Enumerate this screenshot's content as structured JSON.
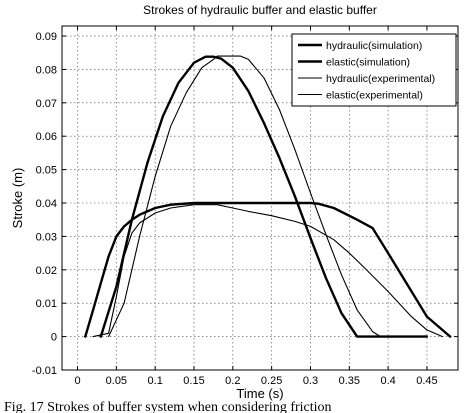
{
  "chart_data": {
    "type": "line",
    "title": "Strokes of hydraulic buffer and elastic buffer",
    "xlabel": "Time (s)",
    "ylabel": "Stroke (m)",
    "xlim": [
      -0.02,
      0.49
    ],
    "ylim": [
      -0.01,
      0.093
    ],
    "xticks": [
      0,
      0.05,
      0.1,
      0.15,
      0.2,
      0.25,
      0.3,
      0.35,
      0.4,
      0.45
    ],
    "xtick_labels": [
      "0",
      "0.05",
      "0.1",
      "0.15",
      "0.2",
      "0.25",
      "0.3",
      "0.35",
      "0.4",
      "0.45"
    ],
    "yticks": [
      -0.01,
      0,
      0.01,
      0.02,
      0.03,
      0.04,
      0.05,
      0.06,
      0.07,
      0.08,
      0.09
    ],
    "ytick_labels": [
      "-0.01",
      "0",
      "0.01",
      "0.02",
      "0.03",
      "0.04",
      "0.05",
      "0.06",
      "0.07",
      "0.08",
      "0.09"
    ],
    "grid": true,
    "legend_position": "top-right",
    "series": [
      {
        "name": "hydraulic(simulation)",
        "color": "#000000",
        "width": 2.4,
        "x": [
          0.01,
          0.02,
          0.03,
          0.04,
          0.05,
          0.06,
          0.07,
          0.08,
          0.09,
          0.1,
          0.12,
          0.15,
          0.18,
          0.2,
          0.25,
          0.3,
          0.31,
          0.33,
          0.36,
          0.38,
          0.4,
          0.45,
          0.48
        ],
        "y": [
          0,
          0.008,
          0.016,
          0.024,
          0.03,
          0.033,
          0.035,
          0.0365,
          0.0375,
          0.0385,
          0.0395,
          0.04,
          0.04,
          0.04,
          0.04,
          0.04,
          0.0398,
          0.0385,
          0.035,
          0.0325,
          0.025,
          0.006,
          0
        ]
      },
      {
        "name": "elastic(simulation)",
        "color": "#000000",
        "width": 2.4,
        "x": [
          0.03,
          0.05,
          0.07,
          0.09,
          0.11,
          0.13,
          0.15,
          0.165,
          0.175,
          0.185,
          0.2,
          0.22,
          0.24,
          0.26,
          0.28,
          0.3,
          0.32,
          0.34,
          0.36,
          0.38,
          0.4,
          0.45
        ],
        "y": [
          0,
          0.015,
          0.035,
          0.052,
          0.066,
          0.076,
          0.082,
          0.0838,
          0.0838,
          0.0832,
          0.0805,
          0.0735,
          0.064,
          0.0535,
          0.042,
          0.0295,
          0.0175,
          0.007,
          0,
          0,
          0,
          0
        ]
      },
      {
        "name": "hydraulic(experimental)",
        "color": "#000000",
        "width": 1.1,
        "x": [
          0.02,
          0.04,
          0.05,
          0.06,
          0.07,
          0.08,
          0.1,
          0.12,
          0.15,
          0.18,
          0.2,
          0.22,
          0.25,
          0.28,
          0.3,
          0.33,
          0.35,
          0.37,
          0.4,
          0.43,
          0.45,
          0.47
        ],
        "y": [
          0,
          0.001,
          0.012,
          0.024,
          0.031,
          0.034,
          0.037,
          0.0385,
          0.0395,
          0.0395,
          0.0385,
          0.0375,
          0.0362,
          0.0345,
          0.033,
          0.029,
          0.025,
          0.0205,
          0.0135,
          0.006,
          0.002,
          0
        ]
      },
      {
        "name": "elastic(experimental)",
        "color": "#000000",
        "width": 1.1,
        "x": [
          0.04,
          0.06,
          0.08,
          0.1,
          0.12,
          0.14,
          0.16,
          0.175,
          0.18,
          0.2,
          0.21,
          0.22,
          0.24,
          0.26,
          0.28,
          0.3,
          0.32,
          0.34,
          0.36,
          0.38,
          0.39,
          0.4,
          0.45
        ],
        "y": [
          0,
          0.01,
          0.03,
          0.048,
          0.063,
          0.073,
          0.0805,
          0.083,
          0.084,
          0.084,
          0.084,
          0.083,
          0.0775,
          0.068,
          0.056,
          0.043,
          0.0305,
          0.0185,
          0.008,
          0.0015,
          0,
          0,
          0
        ]
      }
    ]
  },
  "caption": "Fig. 17 Strokes of buffer system when considering friction"
}
